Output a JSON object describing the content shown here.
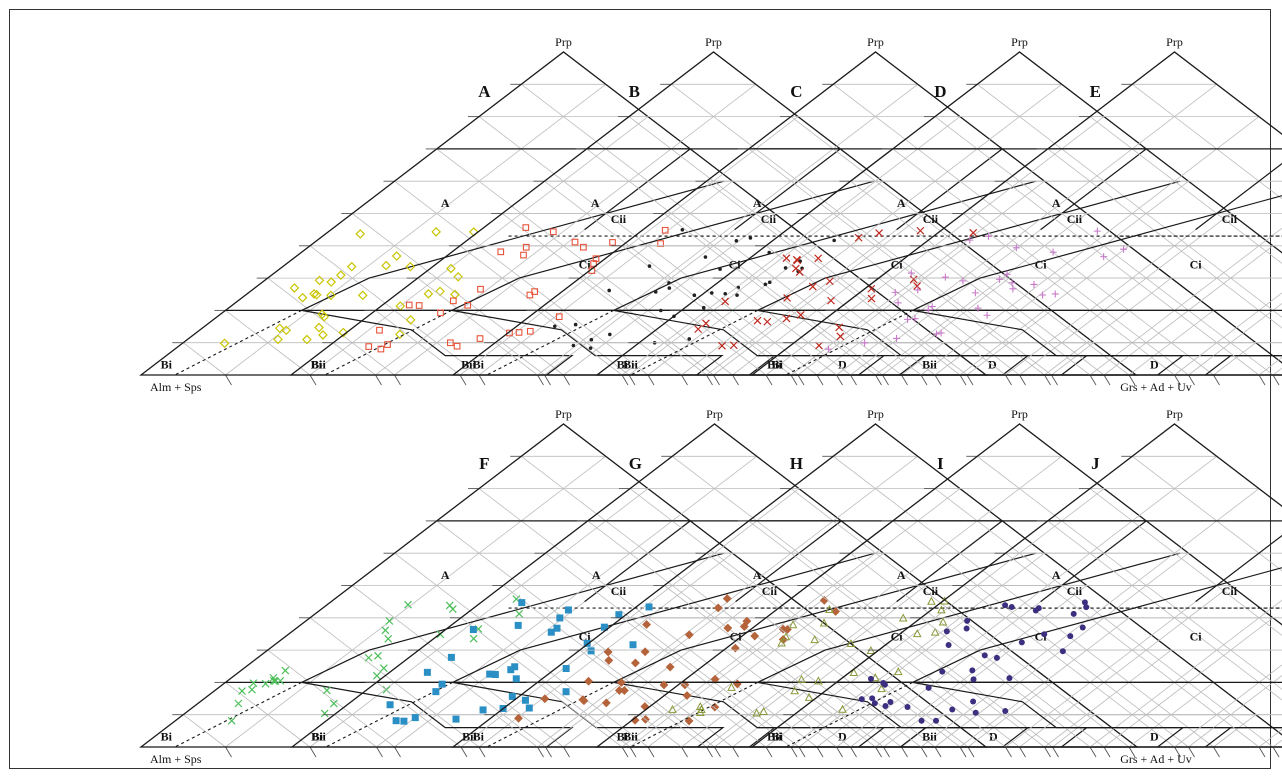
{
  "frame": {
    "left_axis_label": "Alm + Sps",
    "right_axis_label": "Grs + Ad + Uv",
    "apex_label": "Prp"
  },
  "field_labels": {
    "A": "A",
    "Cii": "Cii",
    "Ci": "Ci",
    "Bi": "Bi",
    "Bii": "Bii",
    "D": "D"
  },
  "rows": [
    {
      "panels": [
        {
          "letter": "A",
          "color": "#c9c400",
          "marker": "diamond-open"
        },
        {
          "letter": "B",
          "color": "#e8533a",
          "marker": "square-open"
        },
        {
          "letter": "C",
          "color": "#222222",
          "marker": "dot"
        },
        {
          "letter": "D",
          "color": "#c0281e",
          "marker": "cross"
        },
        {
          "letter": "E",
          "color": "#c77ac9",
          "marker": "plus"
        }
      ]
    },
    {
      "panels": [
        {
          "letter": "F",
          "color": "#4cbf5a",
          "marker": "cross"
        },
        {
          "letter": "G",
          "color": "#2a8fc4",
          "marker": "square-filled"
        },
        {
          "letter": "H",
          "color": "#b5633a",
          "marker": "diamond-filled"
        },
        {
          "letter": "I",
          "color": "#8a9a3a",
          "marker": "triangle-open"
        },
        {
          "letter": "J",
          "color": "#3d2f80",
          "marker": "dot-large"
        }
      ]
    }
  ]
}
